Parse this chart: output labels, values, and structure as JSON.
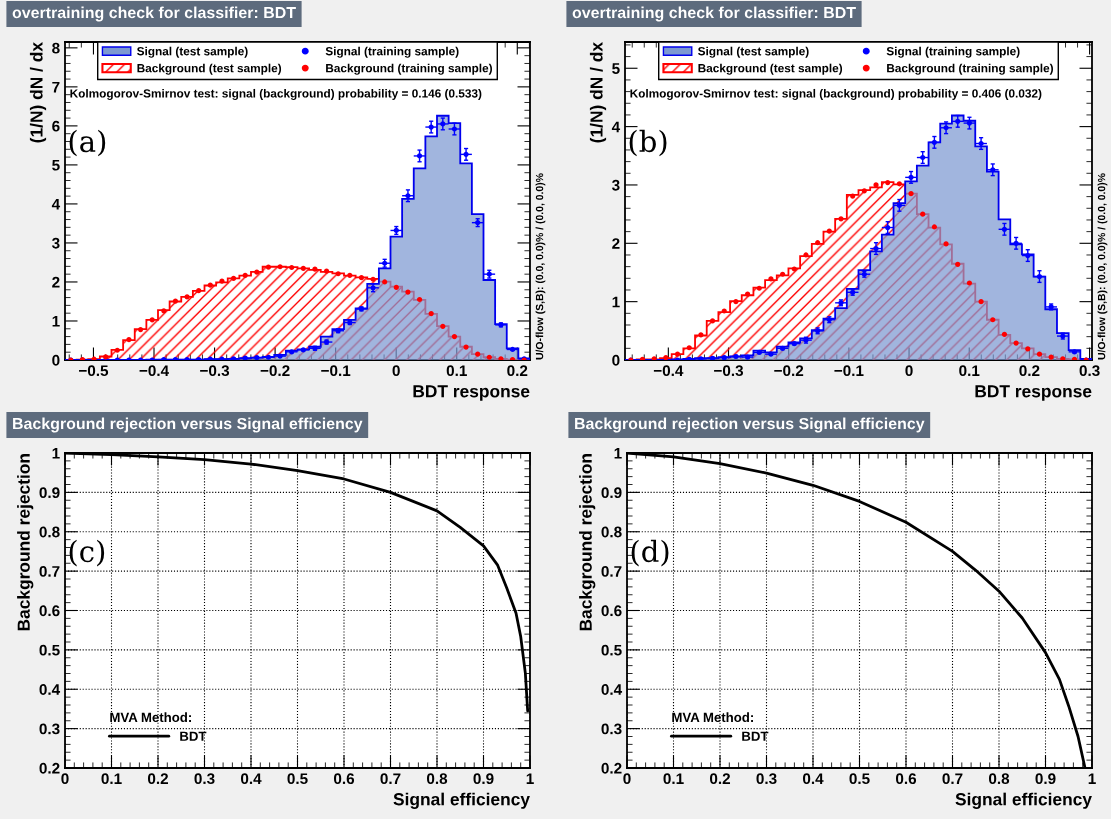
{
  "chart_data": [
    {
      "type": "histogram",
      "title": "overtraining check for classifier: BDT",
      "xlabel": "BDT response",
      "ylabel": "(1/N) dN / dx",
      "bins": [
        -0.547,
        -0.5278,
        -0.5086,
        -0.4894,
        -0.4702,
        -0.451,
        -0.4318,
        -0.4126,
        -0.3934,
        -0.3742,
        -0.355,
        -0.3358,
        -0.3166,
        -0.2974,
        -0.2782,
        -0.259,
        -0.2398,
        -0.2206,
        -0.2014,
        -0.1822,
        -0.163,
        -0.1438,
        -0.1246,
        -0.1054,
        -0.0862,
        -0.067,
        -0.0478,
        -0.0286,
        -0.0094,
        0.0098,
        0.029,
        0.0482,
        0.0674,
        0.0866,
        0.1058,
        0.125,
        0.1442,
        0.1634,
        0.1826,
        0.2018,
        0.221
      ],
      "xlim": [
        -0.547,
        0.221
      ],
      "ylim": [
        0,
        8.15
      ],
      "xticks": [
        {
          "value": -0.5,
          "label": "−0.5"
        },
        {
          "value": -0.4,
          "label": "−0.4"
        },
        {
          "value": -0.3,
          "label": "−0.3"
        },
        {
          "value": -0.2,
          "label": "−0.2"
        },
        {
          "value": -0.1,
          "label": "−0.1"
        },
        0,
        0.1,
        0.2
      ],
      "yticks": [
        0,
        1,
        2,
        3,
        4,
        5,
        6,
        7,
        8
      ],
      "legend": "top",
      "marker": "circle",
      "series": [
        {
          "name": "Signal (test sample)",
          "type": "histogram",
          "color": "#7d99d1",
          "values": [
            0,
            0,
            0,
            0,
            0,
            0,
            0,
            0.01,
            0.01,
            0.01,
            0.01,
            0.01,
            0.02,
            0.02,
            0.03,
            0.04,
            0.06,
            0.08,
            0.13,
            0.24,
            0.27,
            0.34,
            0.6,
            0.79,
            1.03,
            1.32,
            1.95,
            2.35,
            3.16,
            4.13,
            4.91,
            5.73,
            6.26,
            6.07,
            5.04,
            3.74,
            2.05,
            0.92,
            0.3,
            0.04
          ]
        },
        {
          "name": "Background (test sample)",
          "type": "histogram",
          "color": "#ff0000",
          "values": [
            0,
            0.01,
            0.02,
            0.09,
            0.26,
            0.51,
            0.79,
            1.03,
            1.28,
            1.5,
            1.62,
            1.77,
            1.91,
            1.99,
            2.09,
            2.16,
            2.26,
            2.39,
            2.39,
            2.38,
            2.35,
            2.31,
            2.26,
            2.22,
            2.16,
            2.12,
            2.08,
            2.01,
            1.88,
            1.75,
            1.54,
            1.18,
            0.87,
            0.6,
            0.34,
            0.15,
            0.07,
            0.03,
            0.01,
            0
          ]
        },
        {
          "name": "Signal (training sample)",
          "type": "scatter",
          "color": "#0000ff",
          "x": [
            -0.5374,
            -0.5182,
            -0.499,
            -0.4798,
            -0.4606,
            -0.4414,
            -0.4222,
            -0.403,
            -0.3838,
            -0.3646,
            -0.3454,
            -0.3262,
            -0.307,
            -0.2878,
            -0.2686,
            -0.2494,
            -0.2302,
            -0.211,
            -0.1918,
            -0.1726,
            -0.1534,
            -0.1342,
            -0.115,
            -0.0958,
            -0.0766,
            -0.0574,
            -0.0382,
            -0.019,
            0.0002,
            0.0194,
            0.0386,
            0.0578,
            0.077,
            0.0962,
            0.1154,
            0.1346,
            0.1538,
            0.173,
            0.1922,
            0.2114
          ],
          "values": [
            0,
            0,
            0,
            0,
            0,
            0,
            0,
            0,
            0.01,
            0.01,
            0.01,
            0.01,
            0.02,
            0.02,
            0.03,
            0.05,
            0.06,
            0.07,
            0.1,
            0.21,
            0.26,
            0.3,
            0.46,
            0.75,
            0.96,
            1.31,
            1.85,
            2.48,
            3.32,
            4.21,
            5.23,
            5.97,
            6.05,
            5.92,
            5.27,
            3.52,
            2.2,
            0.9,
            0.27,
            0.03
          ],
          "errors": [
            null,
            null,
            null,
            null,
            null,
            null,
            null,
            null,
            0.02,
            0.02,
            0.02,
            0.02,
            0.02,
            0.02,
            0.02,
            0.02,
            0.02,
            0.02,
            0.02,
            0.02,
            0.02,
            0.05,
            0.05,
            0.05,
            0.05,
            0.05,
            0.1,
            0.1,
            0.1,
            0.15,
            0.15,
            0.15,
            0.15,
            0.15,
            0.15,
            0.1,
            0.1,
            0.05,
            0.02,
            0.02
          ],
          "xerrors": [
            0.0096,
            null,
            0.0096,
            0.0096,
            0.0096,
            0.0096,
            0.0096,
            0.0096,
            0.0096,
            0.0096,
            0.0096,
            0.0096,
            0.0096,
            0.0096,
            0.0096,
            0.0096,
            0.0096,
            0.0096,
            0.0096,
            0.0096,
            0.0096,
            0.0096,
            0.0096,
            0.0096,
            0.0096,
            0.0096,
            0.0096,
            0.0096,
            0.0096,
            0.0096,
            0.0096,
            0.0096,
            0.0096,
            0.0096,
            0.0096,
            0.0096,
            0.0096,
            0.0096,
            0.0096,
            0.0096
          ]
        },
        {
          "name": "Background (training sample)",
          "type": "scatter",
          "color": "#ff0000",
          "x": [
            -0.5374,
            -0.5182,
            -0.499,
            -0.4798,
            -0.4606,
            -0.4414,
            -0.4222,
            -0.403,
            -0.3838,
            -0.3646,
            -0.3454,
            -0.3262,
            -0.307,
            -0.2878,
            -0.2686,
            -0.2494,
            -0.2302,
            -0.211,
            -0.1918,
            -0.1726,
            -0.1534,
            -0.1342,
            -0.115,
            -0.0958,
            -0.0766,
            -0.0574,
            -0.0382,
            -0.019,
            0.0002,
            0.0194,
            0.0386,
            0.0578,
            0.077,
            0.0962,
            0.1154,
            0.1346,
            0.1538,
            0.173,
            0.1922,
            0.2114
          ],
          "values": [
            0,
            0.01,
            0.02,
            0.08,
            0.25,
            0.52,
            0.78,
            1.03,
            1.26,
            1.51,
            1.62,
            1.78,
            1.92,
            2.02,
            2.09,
            2.17,
            2.25,
            2.38,
            2.39,
            2.37,
            2.35,
            2.33,
            2.28,
            2.21,
            2.17,
            2.11,
            2.07,
            2.0,
            1.86,
            1.74,
            1.55,
            1.19,
            0.86,
            0.6,
            0.33,
            0.15,
            0.07,
            0.03,
            0.01,
            0
          ]
        }
      ],
      "annotations": [
        "Kolmogorov-Smirnov test: signal (background) probability = 0.146 (0.533)",
        "(a)",
        "U/O-flow (S,B): (0.0, 0.0)% / (0.0, 0.0)%"
      ]
    },
    {
      "type": "histogram",
      "title": "overtraining check for classifier: BDT",
      "xlabel": "BDT response",
      "ylabel": "(1/N) dN / dx",
      "bins": [
        -0.472,
        -0.4526,
        -0.4332,
        -0.4138,
        -0.3944,
        -0.375,
        -0.3556,
        -0.3362,
        -0.3168,
        -0.2974,
        -0.278,
        -0.2586,
        -0.2392,
        -0.2198,
        -0.2004,
        -0.181,
        -0.1616,
        -0.1422,
        -0.1228,
        -0.1034,
        -0.084,
        -0.0646,
        -0.0452,
        -0.0258,
        -0.0064,
        0.013,
        0.0324,
        0.0518,
        0.0712,
        0.0906,
        0.11,
        0.1294,
        0.1488,
        0.1682,
        0.1876,
        0.207,
        0.2264,
        0.2458,
        0.2652,
        0.2846,
        0.304
      ],
      "xlim": [
        -0.472,
        0.304
      ],
      "ylim": [
        0,
        5.45
      ],
      "xticks": [
        {
          "value": -0.4,
          "label": "−0.4"
        },
        {
          "value": -0.3,
          "label": "−0.3"
        },
        {
          "value": -0.2,
          "label": "−0.2"
        },
        {
          "value": -0.1,
          "label": "−0.1"
        },
        0,
        0.1,
        0.2,
        0.3
      ],
      "yticks": [
        0,
        1,
        2,
        3,
        4,
        5
      ],
      "legend": "top",
      "marker": "circle",
      "series": [
        {
          "name": "Signal (test sample)",
          "type": "histogram",
          "color": "#7d99d1",
          "values": [
            0,
            0,
            0,
            0,
            0.01,
            0.02,
            0.03,
            0.03,
            0.05,
            0.06,
            0.08,
            0.16,
            0.13,
            0.23,
            0.3,
            0.37,
            0.51,
            0.71,
            0.89,
            1.22,
            1.54,
            1.86,
            2.15,
            2.69,
            3.06,
            3.33,
            3.73,
            4.05,
            4.19,
            4.1,
            3.66,
            3.23,
            2.41,
            1.98,
            1.81,
            1.43,
            0.87,
            0.46,
            0.17,
            0.02
          ]
        },
        {
          "name": "Background (test sample)",
          "type": "histogram",
          "color": "#ff0000",
          "values": [
            0,
            0.01,
            0.01,
            0.03,
            0.1,
            0.2,
            0.42,
            0.67,
            0.82,
            1.01,
            1.11,
            1.24,
            1.37,
            1.45,
            1.57,
            1.78,
            1.99,
            2.2,
            2.42,
            2.83,
            2.91,
            2.96,
            3.05,
            3.01,
            2.85,
            2.5,
            2.27,
            1.98,
            1.65,
            1.31,
            1.0,
            0.69,
            0.43,
            0.29,
            0.2,
            0.1,
            0.05,
            0.02,
            0.01,
            0
          ]
        },
        {
          "name": "Signal (training sample)",
          "type": "scatter",
          "color": "#0000ff",
          "x": [
            -0.4623,
            -0.4429,
            -0.4235,
            -0.4041,
            -0.3847,
            -0.3653,
            -0.3459,
            -0.3265,
            -0.3071,
            -0.2877,
            -0.2683,
            -0.2489,
            -0.2295,
            -0.2101,
            -0.1907,
            -0.1713,
            -0.1519,
            -0.1325,
            -0.1131,
            -0.0937,
            -0.0743,
            -0.0549,
            -0.0355,
            -0.0161,
            0.0033,
            0.0227,
            0.0421,
            0.0615,
            0.0809,
            0.1003,
            0.1197,
            0.1391,
            0.1585,
            0.1779,
            0.1973,
            0.2167,
            0.2361,
            0.2555,
            0.2749,
            0.2943
          ],
          "values": [
            0,
            0,
            0,
            0,
            0,
            0.01,
            0.02,
            0.03,
            0.04,
            0.06,
            0.05,
            0.13,
            0.1,
            0.2,
            0.28,
            0.34,
            0.5,
            0.69,
            0.98,
            1.16,
            1.47,
            1.91,
            2.27,
            2.65,
            3.13,
            3.47,
            3.73,
            3.98,
            4.09,
            4.06,
            3.71,
            3.26,
            2.24,
            2.0,
            1.79,
            1.43,
            0.91,
            0.41,
            0.14,
            0
          ],
          "errors": [
            null,
            null,
            null,
            null,
            null,
            0.02,
            0.02,
            0.02,
            0.02,
            0.02,
            0.02,
            0.02,
            0.02,
            0.02,
            0.02,
            0.05,
            0.05,
            0.05,
            0.05,
            0.05,
            0.05,
            0.1,
            0.1,
            0.1,
            0.1,
            0.1,
            0.1,
            0.1,
            0.1,
            0.1,
            0.1,
            0.1,
            0.1,
            0.1,
            0.1,
            0.1,
            0.05,
            0.05,
            0.02,
            null
          ],
          "xerrors": [
            0.0097,
            null,
            0.0097,
            0.0097,
            0.0097,
            0.0097,
            0.0097,
            0.0097,
            0.0097,
            0.0097,
            0.0097,
            0.0097,
            0.0097,
            0.0097,
            0.0097,
            0.0097,
            0.0097,
            0.0097,
            0.0097,
            0.0097,
            0.0097,
            0.0097,
            0.0097,
            0.0097,
            0.0097,
            0.0097,
            0.0097,
            0.0097,
            0.0097,
            0.0097,
            0.0097,
            0.0097,
            0.0097,
            0.0097,
            0.0097,
            0.0097,
            0.0097,
            0.0097,
            0.0097,
            0.0097
          ]
        },
        {
          "name": "Background (training sample)",
          "type": "scatter",
          "color": "#ff0000",
          "x": [
            -0.4623,
            -0.4429,
            -0.4235,
            -0.4041,
            -0.3847,
            -0.3653,
            -0.3459,
            -0.3265,
            -0.3071,
            -0.2877,
            -0.2683,
            -0.2489,
            -0.2295,
            -0.2101,
            -0.1907,
            -0.1713,
            -0.1519,
            -0.1325,
            -0.1131,
            -0.0937,
            -0.0743,
            -0.0549,
            -0.0355,
            -0.0161,
            0.0033,
            0.0227,
            0.0421,
            0.0615,
            0.0809,
            0.1003,
            0.1197,
            0.1391,
            0.1585,
            0.1779,
            0.1973,
            0.2167,
            0.2361,
            0.2555,
            0.2749,
            0.2943
          ],
          "values": [
            0,
            0.01,
            0.02,
            0.04,
            0.1,
            0.21,
            0.43,
            0.67,
            0.84,
            1.0,
            1.13,
            1.23,
            1.39,
            1.47,
            1.56,
            1.8,
            2.01,
            2.21,
            2.42,
            2.81,
            2.9,
            3.0,
            3.04,
            3.02,
            2.85,
            2.5,
            2.28,
            1.99,
            1.64,
            1.32,
            1.0,
            0.69,
            0.44,
            0.29,
            0.19,
            0.1,
            0.05,
            0.02,
            0.01,
            0
          ]
        }
      ],
      "annotations": [
        "Kolmogorov-Smirnov test: signal (background) probability = 0.406 (0.032)",
        "(b)",
        "U/O-flow (S,B): (0.0, 0.0)% / (0.0, 0.0)%"
      ]
    },
    {
      "type": "line",
      "title": "Background rejection versus Signal efficiency",
      "xlabel": "Signal efficiency",
      "ylabel": "Background rejection",
      "xlim": [
        0,
        1
      ],
      "ylim": [
        0.2,
        1
      ],
      "xticks": [
        0,
        0.1,
        0.2,
        0.3,
        0.4,
        0.5,
        0.6,
        0.7,
        0.8,
        0.9,
        1
      ],
      "yticks": [
        0.2,
        0.3,
        0.4,
        0.5,
        0.6,
        0.7,
        0.8,
        0.9,
        1
      ],
      "grid": true,
      "legend": "bottom left",
      "legend_title": "MVA Method:",
      "line_style": "solid",
      "series": [
        {
          "name": "BDT",
          "color": "#000000",
          "x": [
            0,
            0.1,
            0.2,
            0.3,
            0.4,
            0.5,
            0.6,
            0.7,
            0.8,
            0.85,
            0.9,
            0.93,
            0.95,
            0.97,
            0.98,
            0.99,
            0.995
          ],
          "values": [
            1,
            0.996,
            0.99,
            0.983,
            0.972,
            0.955,
            0.934,
            0.9,
            0.853,
            0.811,
            0.764,
            0.716,
            0.657,
            0.593,
            0.534,
            0.441,
            0.345
          ]
        }
      ],
      "annotations": [
        "(c)"
      ]
    },
    {
      "type": "line",
      "title": "Background rejection versus Signal efficiency",
      "xlabel": "Signal efficiency",
      "ylabel": "Background rejection",
      "xlim": [
        0,
        1
      ],
      "ylim": [
        0.2,
        1
      ],
      "xticks": [
        0,
        0.1,
        0.2,
        0.3,
        0.4,
        0.5,
        0.6,
        0.7,
        0.8,
        0.9,
        1
      ],
      "yticks": [
        0.2,
        0.3,
        0.4,
        0.5,
        0.6,
        0.7,
        0.8,
        0.9,
        1
      ],
      "grid": true,
      "legend": "bottom left",
      "legend_title": "MVA Method:",
      "line_style": "solid",
      "series": [
        {
          "name": "BDT",
          "color": "#000000",
          "x": [
            0,
            0.1,
            0.2,
            0.3,
            0.4,
            0.5,
            0.6,
            0.7,
            0.75,
            0.8,
            0.85,
            0.9,
            0.93,
            0.95,
            0.97,
            0.985
          ],
          "values": [
            1,
            0.99,
            0.973,
            0.949,
            0.918,
            0.877,
            0.824,
            0.75,
            0.702,
            0.649,
            0.581,
            0.493,
            0.425,
            0.357,
            0.28,
            0.2
          ]
        }
      ],
      "annotations": [
        "(d)"
      ]
    }
  ]
}
